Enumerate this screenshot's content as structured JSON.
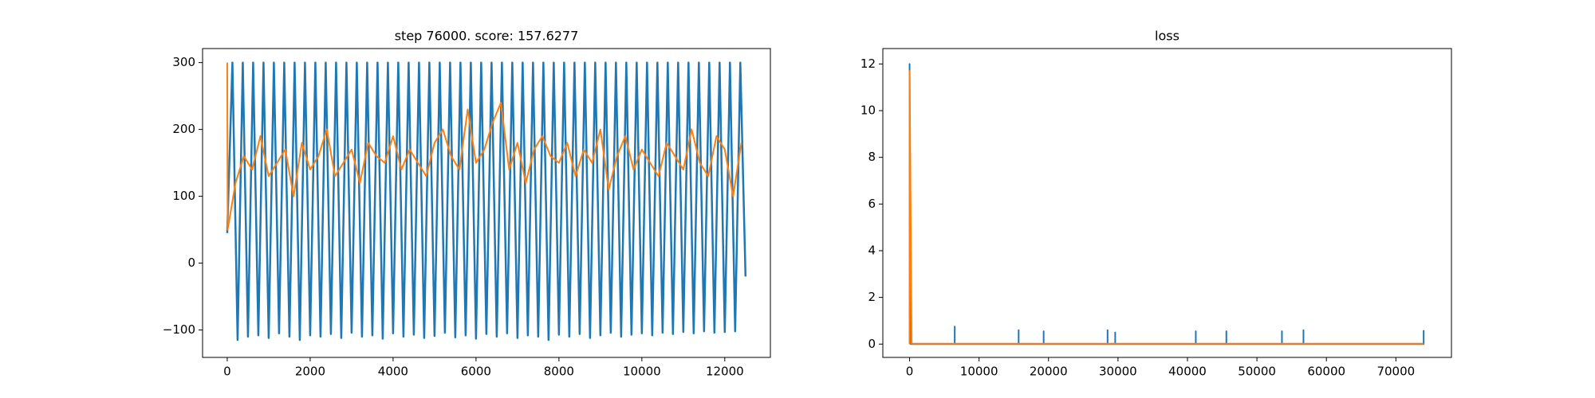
{
  "chart_data": [
    {
      "type": "line",
      "title": "step 76000. score: 157.6277",
      "xlim": [
        -595,
        13100
      ],
      "ylim": [
        -141,
        321
      ],
      "xticks": [
        0,
        2000,
        4000,
        6000,
        8000,
        10000,
        12000
      ],
      "yticks": [
        -100,
        0,
        100,
        200,
        300
      ],
      "series": [
        {
          "color": "#1f77b4",
          "x": [
            0,
            125,
            250,
            375,
            500,
            625,
            750,
            875,
            1000,
            1125,
            1250,
            1375,
            1500,
            1625,
            1750,
            1875,
            2000,
            2125,
            2250,
            2375,
            2500,
            2625,
            2750,
            2875,
            3000,
            3125,
            3250,
            3375,
            3500,
            3625,
            3750,
            3875,
            4000,
            4125,
            4250,
            4375,
            4500,
            4625,
            4750,
            4875,
            5000,
            5125,
            5250,
            5375,
            5500,
            5625,
            5750,
            5875,
            6000,
            6125,
            6250,
            6375,
            6500,
            6625,
            6750,
            6875,
            7000,
            7125,
            7250,
            7375,
            7500,
            7625,
            7750,
            7875,
            8000,
            8125,
            8250,
            8375,
            8500,
            8625,
            8750,
            8875,
            9000,
            9125,
            9250,
            9375,
            9500,
            9625,
            9750,
            9875,
            10000,
            10125,
            10250,
            10375,
            10500,
            10625,
            10750,
            10875,
            11000,
            11125,
            11250,
            11375,
            11500,
            11625,
            11750,
            11875,
            12000,
            12125,
            12250,
            12375,
            12500
          ],
          "values": [
            45,
            300,
            -115,
            300,
            -110,
            300,
            -108,
            300,
            -112,
            300,
            -105,
            300,
            -110,
            300,
            -115,
            300,
            -108,
            300,
            -110,
            300,
            -106,
            300,
            -112,
            300,
            -104,
            300,
            -110,
            300,
            -108,
            300,
            -113,
            300,
            -105,
            300,
            -110,
            300,
            -107,
            300,
            -112,
            300,
            -109,
            300,
            -104,
            300,
            -111,
            300,
            -108,
            300,
            -113,
            300,
            -106,
            300,
            -110,
            300,
            -105,
            300,
            -112,
            300,
            -108,
            300,
            -110,
            300,
            -115,
            300,
            -107,
            300,
            -110,
            300,
            -106,
            300,
            -112,
            300,
            -108,
            300,
            -104,
            300,
            -110,
            300,
            -107,
            300,
            -105,
            300,
            -108,
            300,
            -104,
            300,
            -106,
            300,
            -103,
            300,
            -105,
            300,
            -102,
            300,
            -104,
            300,
            -103,
            300,
            -102,
            300,
            -20
          ]
        },
        {
          "color": "#ff7f0e",
          "x": [
            0,
            10,
            200,
            400,
            600,
            800,
            1000,
            1200,
            1400,
            1600,
            1800,
            2000,
            2200,
            2400,
            2600,
            2800,
            3000,
            3200,
            3400,
            3600,
            3800,
            4000,
            4200,
            4400,
            4600,
            4800,
            5000,
            5200,
            5400,
            5600,
            5800,
            6000,
            6200,
            6400,
            6600,
            6800,
            7000,
            7200,
            7400,
            7600,
            7800,
            8000,
            8200,
            8400,
            8600,
            8800,
            9000,
            9200,
            9400,
            9600,
            9800,
            10000,
            10200,
            10400,
            10600,
            10800,
            11000,
            11200,
            11400,
            11600,
            11800,
            12000,
            12200,
            12400
          ],
          "values": [
            300,
            50,
            120,
            160,
            140,
            190,
            130,
            150,
            170,
            100,
            180,
            140,
            160,
            200,
            130,
            150,
            170,
            120,
            180,
            160,
            150,
            190,
            140,
            170,
            150,
            130,
            180,
            200,
            160,
            140,
            230,
            150,
            170,
            210,
            240,
            140,
            180,
            120,
            170,
            190,
            160,
            150,
            180,
            130,
            170,
            150,
            200,
            110,
            160,
            190,
            140,
            170,
            150,
            130,
            180,
            160,
            140,
            200,
            150,
            130,
            190,
            170,
            100,
            180
          ]
        }
      ]
    },
    {
      "type": "line",
      "title": "loss",
      "xlim": [
        -3850,
        78000
      ],
      "ylim": [
        -0.57,
        12.66
      ],
      "xticks": [
        0,
        10000,
        20000,
        30000,
        40000,
        50000,
        60000,
        70000
      ],
      "yticks": [
        0,
        2,
        4,
        6,
        8,
        10,
        12
      ],
      "series": [
        {
          "color": "#1f77b4",
          "x": [
            0,
            0,
            150,
            6500,
            6500,
            6500,
            15700,
            15700,
            15700,
            19300,
            19300,
            19300,
            28500,
            28500,
            28500,
            29600,
            29600,
            29600,
            41200,
            41200,
            41200,
            45600,
            45600,
            45600,
            53600,
            53600,
            53600,
            56700,
            56700,
            56700,
            74000,
            74000
          ],
          "values": [
            0,
            12,
            0,
            0,
            0.75,
            0,
            0,
            0.6,
            0,
            0,
            0.55,
            0,
            0,
            0.6,
            0,
            0,
            0.5,
            0,
            0,
            0.55,
            0,
            0,
            0.55,
            0,
            0,
            0.55,
            0,
            0,
            0.6,
            0,
            0,
            0.6
          ]
        },
        {
          "color": "#ff7f0e",
          "x": [
            0,
            0,
            300,
            74000
          ],
          "values": [
            0,
            11.7,
            0.02,
            0.02
          ]
        }
      ]
    }
  ]
}
